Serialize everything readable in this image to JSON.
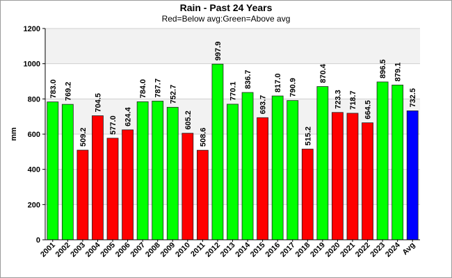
{
  "chart_data": {
    "type": "bar",
    "title": "Rain - Past 24 Years",
    "subtitle": "Red=Below avg:Green=Above avg",
    "ylabel": "mm",
    "xlabel": "",
    "ylim": [
      0,
      1200
    ],
    "yticks": [
      0,
      200,
      400,
      600,
      800,
      1000,
      1200
    ],
    "grid": true,
    "categories": [
      "2001",
      "2002",
      "2003",
      "2004",
      "2005",
      "2006",
      "2007",
      "2008",
      "2009",
      "2010",
      "2011",
      "2012",
      "2013",
      "2014",
      "2015",
      "2016",
      "2017",
      "2018",
      "2019",
      "2020",
      "2021",
      "2022",
      "2023",
      "2024",
      "Avg"
    ],
    "values": [
      783.0,
      769.2,
      509.2,
      704.5,
      577.0,
      624.4,
      784.0,
      787.7,
      752.7,
      605.2,
      508.6,
      997.9,
      770.1,
      836.7,
      693.7,
      817.0,
      790.9,
      515.2,
      870.4,
      723.3,
      718.7,
      664.5,
      896.5,
      879.1,
      732.5
    ],
    "value_labels": [
      "783.0",
      "769.2",
      "509.2",
      "704.5",
      "577.0",
      "624.4",
      "784.0",
      "787.7",
      "752.7",
      "605.2",
      "508.6",
      "997.9",
      "770.1",
      "836.7",
      "693.7",
      "817.0",
      "790.9",
      "515.2",
      "870.4",
      "723.3",
      "718.7",
      "664.5",
      "896.5",
      "879.1",
      "732.5"
    ],
    "colors": {
      "above": "#00ff00",
      "below": "#ff0000",
      "avg": "#0000ff",
      "band_light": "#f2f2f2",
      "band_white": "#ffffff"
    }
  }
}
